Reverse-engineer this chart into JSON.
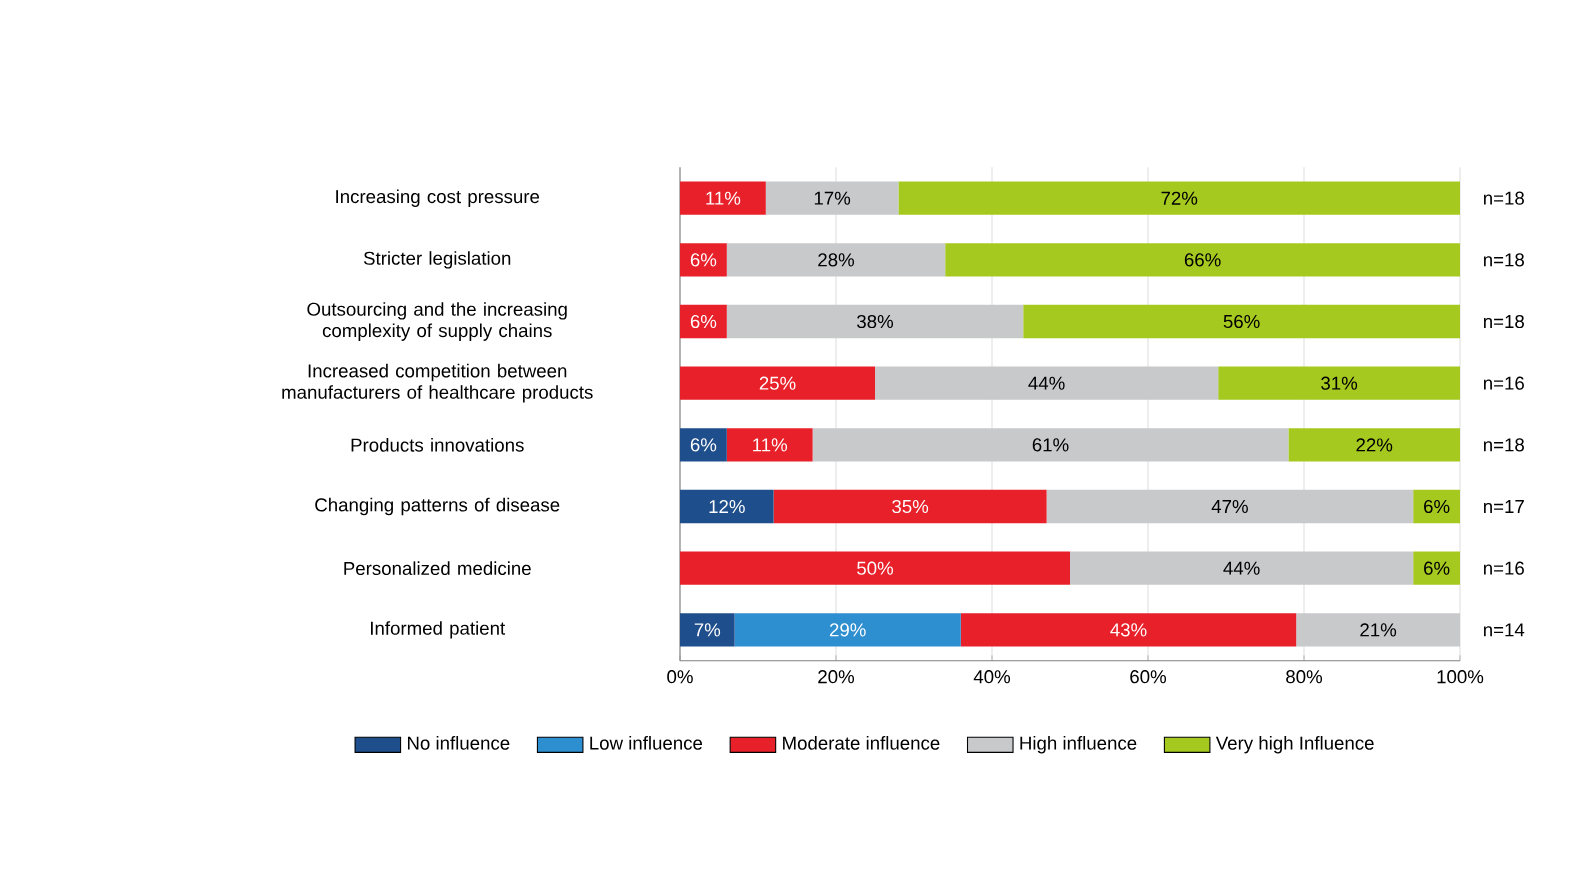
{
  "chart_data": {
    "type": "bar",
    "orientation": "horizontal",
    "stacked": true,
    "categories": [
      "Increasing cost pressure",
      "Stricter legislation",
      "Outsourcing and the increasing complexity of supply chains",
      "Increased competition between manufacturers of healthcare products",
      "Products innovations",
      "Changing patterns of disease",
      "Personalized medicine",
      "Informed patient"
    ],
    "series": [
      {
        "name": "No influence",
        "color": "#1f4e8c",
        "values": [
          null,
          null,
          null,
          null,
          6,
          12,
          null,
          7
        ],
        "value_labels": [
          null,
          null,
          null,
          null,
          "6%",
          "12%",
          null,
          "7%"
        ]
      },
      {
        "name": "Low influence",
        "color": "#2e8fd0",
        "values": [
          null,
          null,
          null,
          null,
          null,
          null,
          null,
          29
        ],
        "value_labels": [
          null,
          null,
          null,
          null,
          null,
          null,
          null,
          "29%"
        ]
      },
      {
        "name": "Moderate influence",
        "color": "#e8202a",
        "values": [
          11,
          6,
          6,
          25,
          11,
          35,
          50,
          43
        ],
        "value_labels": [
          "11%",
          "6%",
          "6%",
          "25%",
          "11%",
          "35%",
          "50%",
          "43%"
        ]
      },
      {
        "name": "High influence",
        "color": "#c8c9cb",
        "values": [
          17,
          28,
          38,
          44,
          61,
          47,
          44,
          21
        ],
        "value_labels": [
          "17%",
          "28%",
          "38%",
          "44%",
          "61%",
          "47%",
          "44%",
          "21%"
        ]
      },
      {
        "name": "Very high Influence",
        "color": "#a6c920",
        "values": [
          72,
          66,
          56,
          31,
          22,
          6,
          6,
          null
        ],
        "value_labels": [
          "72%",
          "66%",
          "56%",
          "31%",
          "22%",
          "6%",
          "6%",
          null
        ]
      }
    ],
    "xlim": [
      0,
      100
    ],
    "xticks": [
      {
        "value": 0,
        "label": "0%"
      },
      {
        "value": 20,
        "label": "20%"
      },
      {
        "value": 40,
        "label": "40%"
      },
      {
        "value": 60,
        "label": "60%"
      },
      {
        "value": 80,
        "label": "80%"
      },
      {
        "value": 100,
        "label": "100%"
      }
    ],
    "grid": "x",
    "legend": "bottom",
    "annotations": [
      "n=18",
      "n=18",
      "n=18",
      "n=16",
      "n=18",
      "n=17",
      "n=16",
      "n=14"
    ]
  }
}
